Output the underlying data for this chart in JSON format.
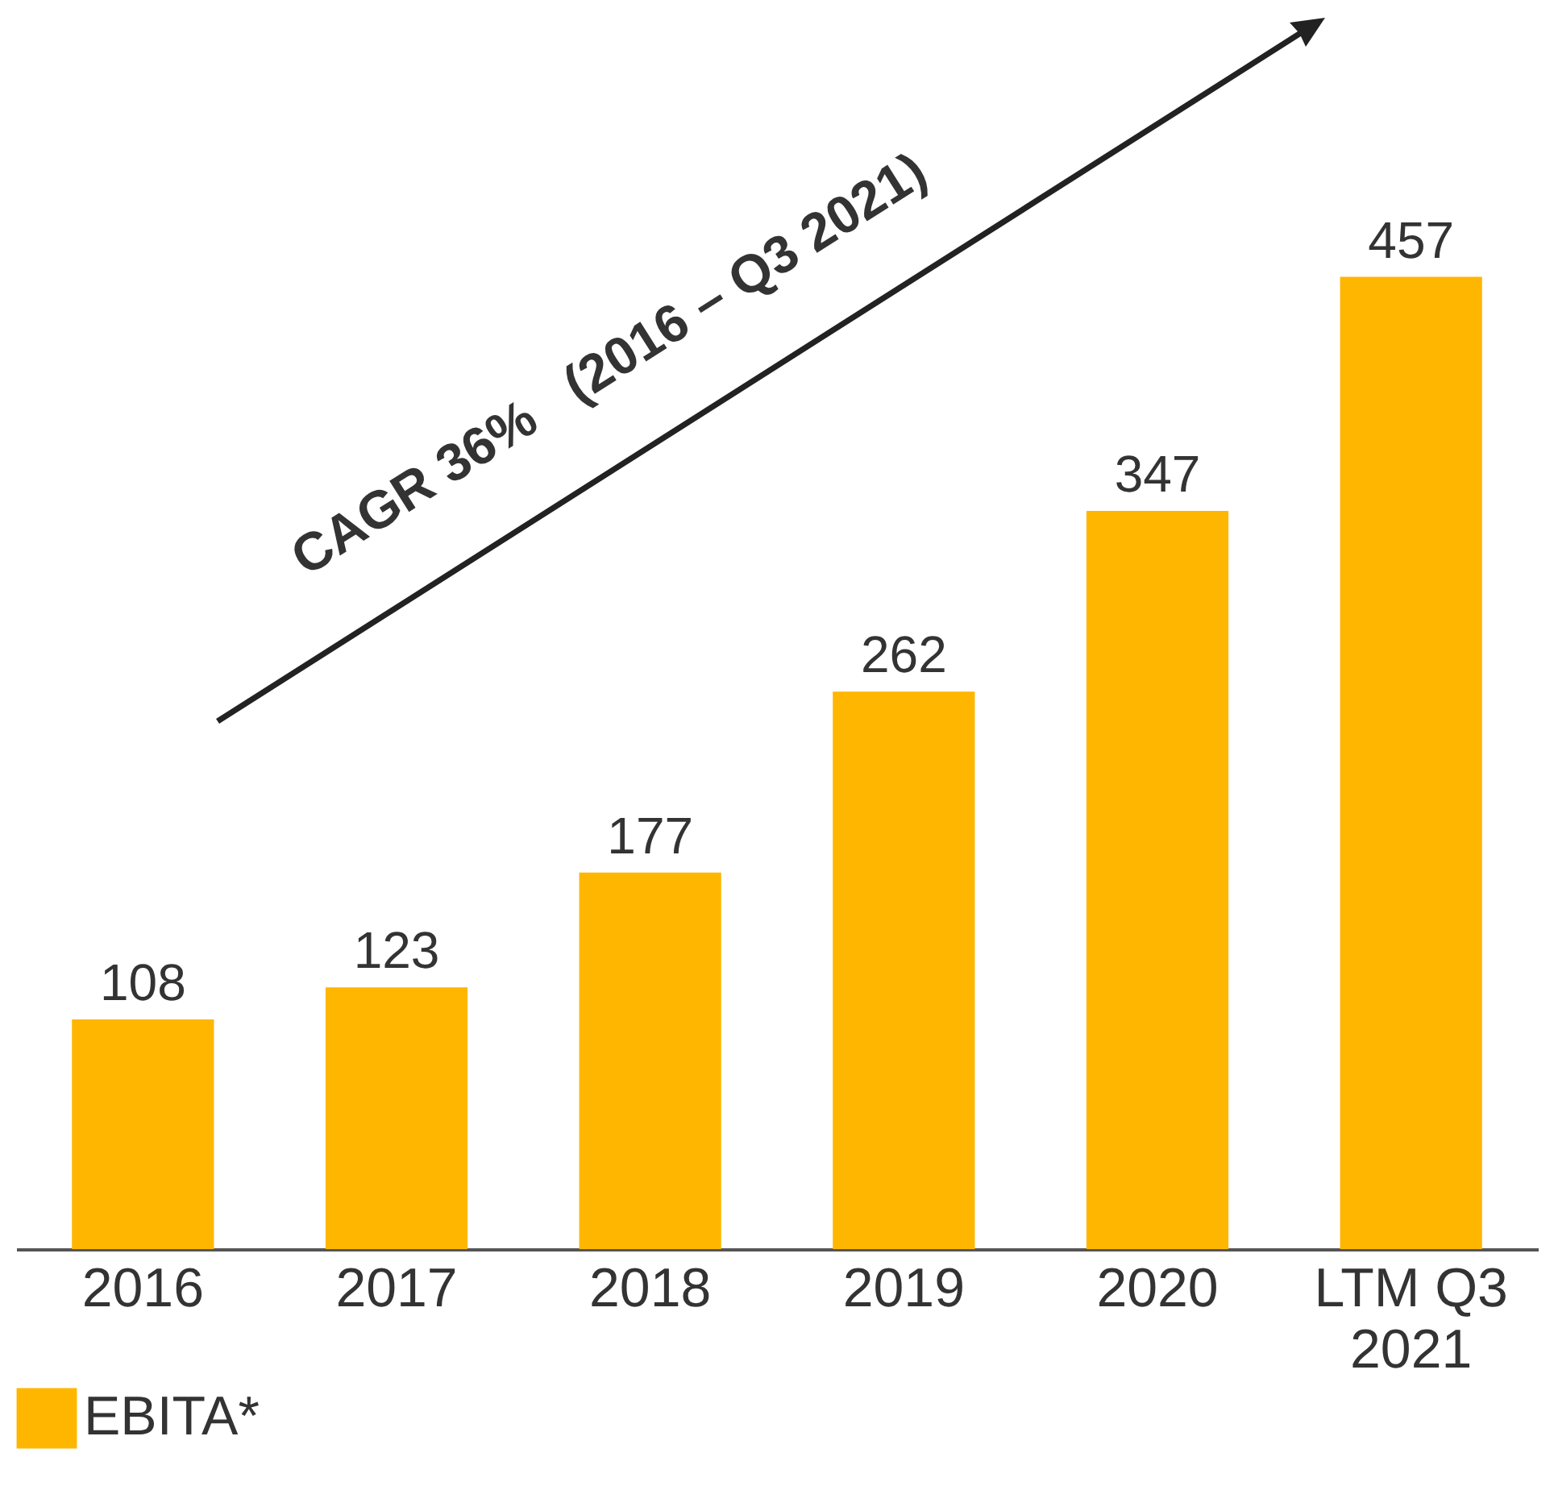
{
  "chart_data": {
    "type": "bar",
    "categories": [
      "2016",
      "2017",
      "2018",
      "2019",
      "2020",
      "LTM Q3 2021"
    ],
    "series": [
      {
        "name": "EBITA*",
        "color": "#ffb600",
        "values": [
          108,
          123,
          177,
          262,
          347,
          457
        ]
      }
    ],
    "data_labels": true,
    "legend": "bottom",
    "annotations": [
      "CAGR 36%   (2016 – Q3 2021)"
    ]
  }
}
